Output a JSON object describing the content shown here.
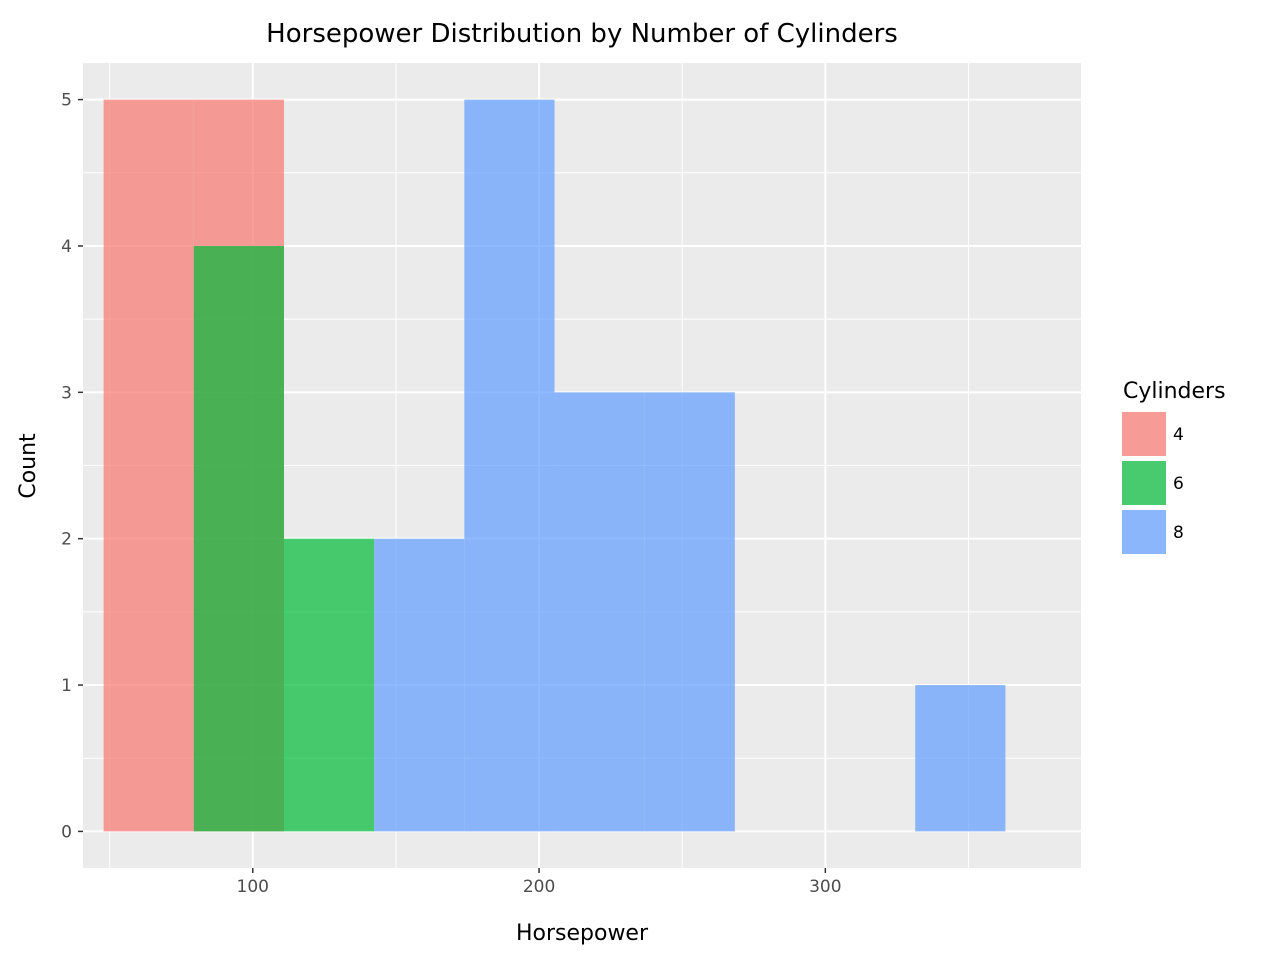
{
  "chart_data": {
    "type": "bar",
    "subtype": "histogram",
    "title": "Horsepower Distribution by Number of Cylinders",
    "xlabel": "Horsepower",
    "ylabel": "Count",
    "xlim": [
      40.7,
      389.3
    ],
    "ylim": [
      -0.25,
      5.25
    ],
    "x_ticks": [
      100,
      200,
      300
    ],
    "x_tick_labels": [
      "100",
      "200",
      "300"
    ],
    "y_ticks": [
      0,
      1,
      2,
      3,
      4,
      5
    ],
    "y_tick_labels": [
      "0",
      "1",
      "2",
      "3",
      "4",
      "5"
    ],
    "grid": true,
    "bar_opacity": 0.7,
    "legend": {
      "title": "Cylinders",
      "position": "right"
    },
    "series": [
      {
        "name": "4",
        "color": "#F8766D",
        "bins": [
          {
            "x0": 47.9,
            "x1": 79.4,
            "count": 5
          },
          {
            "x0": 79.4,
            "x1": 110.9,
            "count": 5
          }
        ]
      },
      {
        "name": "6",
        "color": "#00BA38",
        "bins": [
          {
            "x0": 79.4,
            "x1": 110.9,
            "count": 4
          },
          {
            "x0": 110.9,
            "x1": 142.4,
            "count": 2
          }
        ]
      },
      {
        "name": "8",
        "color": "#619CFF",
        "bins": [
          {
            "x0": 142.4,
            "x1": 173.9,
            "count": 2
          },
          {
            "x0": 173.9,
            "x1": 205.4,
            "count": 5
          },
          {
            "x0": 205.4,
            "x1": 236.9,
            "count": 3
          },
          {
            "x0": 236.9,
            "x1": 268.4,
            "count": 3
          },
          {
            "x0": 331.4,
            "x1": 362.9,
            "count": 1
          }
        ]
      }
    ]
  }
}
